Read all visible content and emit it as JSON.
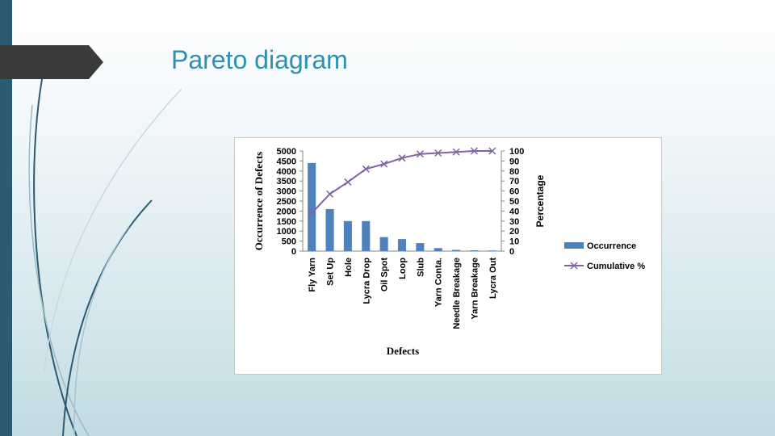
{
  "slide": {
    "title": "Pareto diagram",
    "colors": {
      "title": "#2e8fb0",
      "left_bar": "#2b5a73",
      "tab": "#3a3a3a"
    }
  },
  "chart_data": {
    "type": "bar",
    "categories": [
      "Fly Yarn",
      "Set Up",
      "Hole",
      "Lycra Drop",
      "Oil Spot",
      "Loop",
      "Slub",
      "Yarn Conta.",
      "Needle Breakage",
      "Yarn Breakage",
      "Lycra Out"
    ],
    "series": [
      {
        "name": "Occurrence",
        "type": "bar",
        "axis": "left",
        "color": "#4f81bd",
        "values": [
          4400,
          2100,
          1500,
          1500,
          700,
          600,
          400,
          150,
          60,
          40,
          30
        ]
      },
      {
        "name": "Cumulative %",
        "type": "line",
        "axis": "right",
        "color": "#8064a2",
        "marker": "x",
        "values": [
          38,
          57,
          69,
          82,
          87,
          93,
          97,
          98,
          99,
          100,
          100
        ]
      }
    ],
    "ylabel": "Occurrence of Defects",
    "y2label": "Percentage",
    "xlabel": "Defects",
    "ylim": [
      0,
      5000
    ],
    "y2lim": [
      0,
      100
    ],
    "yticks": [
      0,
      500,
      1000,
      1500,
      2000,
      2500,
      3000,
      3500,
      4000,
      4500,
      5000
    ],
    "y2ticks": [
      0,
      10,
      20,
      30,
      40,
      50,
      60,
      70,
      80,
      90,
      100
    ],
    "grid": false,
    "legend": "right"
  }
}
